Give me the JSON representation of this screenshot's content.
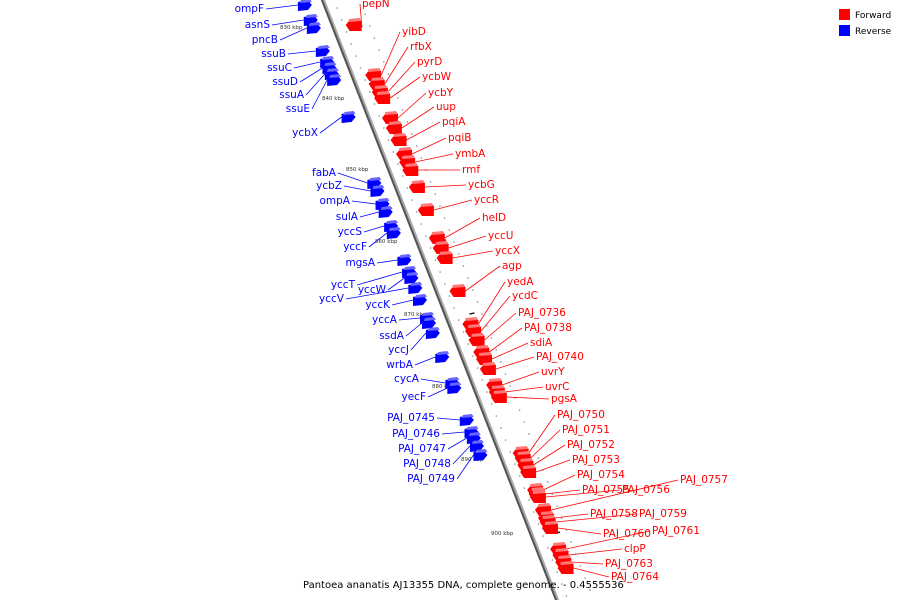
{
  "legend": {
    "forward": {
      "label": "Forward",
      "color": "#ff0000"
    },
    "reverse": {
      "label": "Reverse",
      "color": "#0000ff"
    }
  },
  "footer": "Pantoea ananatis AJ13355 DNA, complete genome. - 0.4555536",
  "kbp_ticks": [
    "830 kbp",
    "840 kbp",
    "850 kbp",
    "860 kbp",
    "870 kbp",
    "880 kbp",
    "890 kbp",
    "900 kbp"
  ],
  "genes_reverse": [
    "ompF",
    "asnS",
    "pncB",
    "ssuB",
    "ssuC",
    "ssuD",
    "ssuA",
    "ssuE",
    "ycbX",
    "fabA",
    "ycbZ",
    "ompA",
    "sulA",
    "yccS",
    "yccF",
    "mgsA",
    "yccT",
    "yccW",
    "yccV",
    "yccK",
    "yccA",
    "ssdA",
    "yccJ",
    "wrbA",
    "cycA",
    "yecF",
    "PAJ_0745",
    "PAJ_0746",
    "PAJ_0747",
    "PAJ_0748",
    "PAJ_0749"
  ],
  "genes_forward": [
    "pepN",
    "yibD",
    "rfbX",
    "pyrD",
    "ycbW",
    "ycbY",
    "uup",
    "pqiA",
    "pqiB",
    "ymbA",
    "rmf",
    "ycbG",
    "yccR",
    "helD",
    "yccU",
    "yccX",
    "agp",
    "yedA",
    "ycdC",
    "PAJ_0736",
    "PAJ_0738",
    "sdiA",
    "PAJ_0740",
    "uvrY",
    "uvrC",
    "pgsA",
    "PAJ_0750",
    "PAJ_0751",
    "PAJ_0752",
    "PAJ_0753",
    "PAJ_0754",
    "PAJ_0755",
    "PAJ_0756",
    "PAJ_0757",
    "PAJ_0758",
    "PAJ_0759",
    "PAJ_0760",
    "PAJ_0761",
    "clpP",
    "PAJ_0763",
    "PAJ_0764"
  ]
}
